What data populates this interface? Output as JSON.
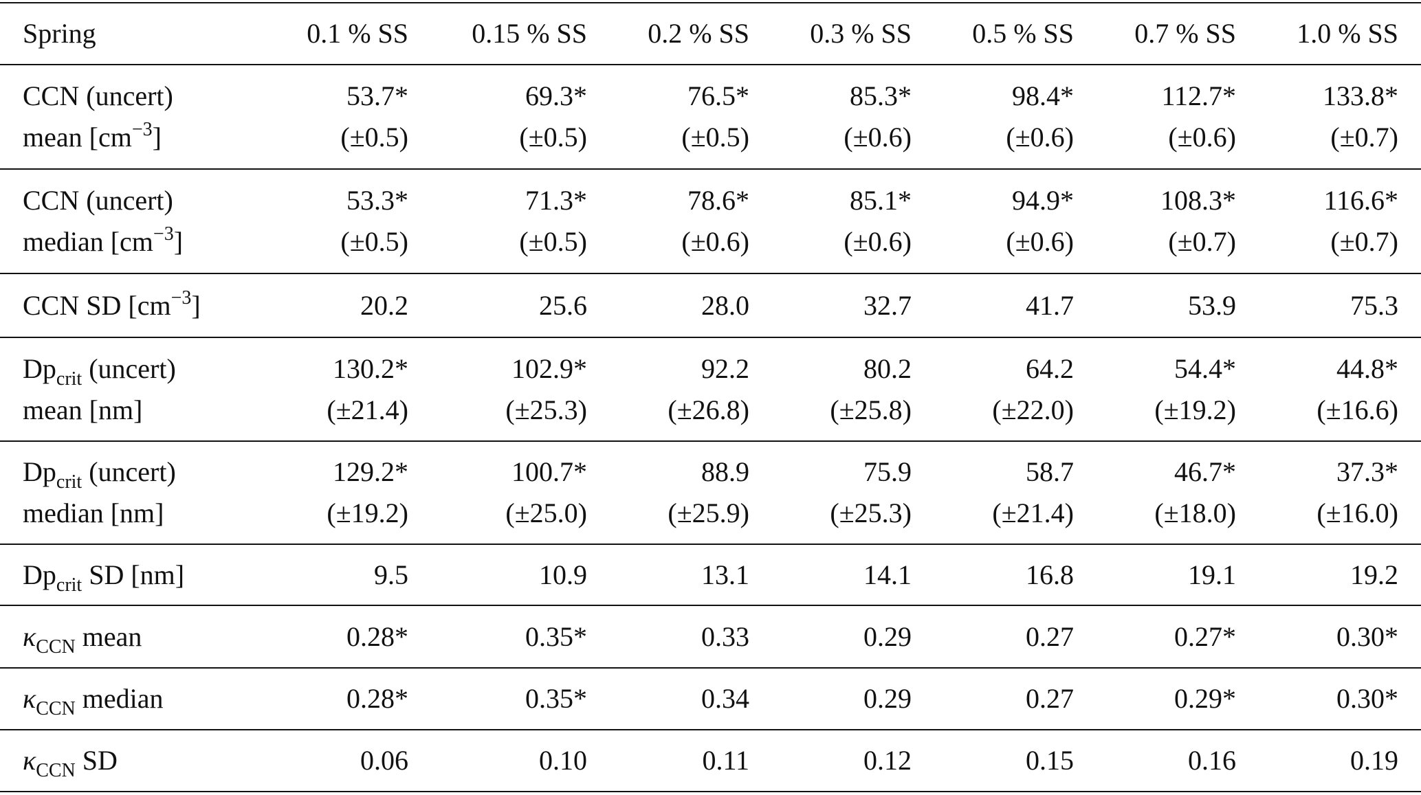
{
  "table": {
    "header": [
      "Spring",
      "0.1 % SS",
      "0.15 % SS",
      "0.2 % SS",
      "0.3 % SS",
      "0.5 % SS",
      "0.7 % SS",
      "1.0 % SS"
    ],
    "rows": [
      {
        "label": [
          [
            {
              "text": "CCN (uncert)"
            }
          ],
          [
            {
              "text": "mean [cm"
            },
            {
              "sup": "−3"
            },
            {
              "text": "]"
            }
          ]
        ],
        "cells": [
          [
            "53.7*",
            "(±0.5)"
          ],
          [
            "69.3*",
            "(±0.5)"
          ],
          [
            "76.5*",
            "(±0.5)"
          ],
          [
            "85.3*",
            "(±0.6)"
          ],
          [
            "98.4*",
            "(±0.6)"
          ],
          [
            "112.7*",
            "(±0.6)"
          ],
          [
            "133.8*",
            "(±0.7)"
          ]
        ]
      },
      {
        "label": [
          [
            {
              "text": "CCN (uncert)"
            }
          ],
          [
            {
              "text": "median [cm"
            },
            {
              "sup": "−3"
            },
            {
              "text": "]"
            }
          ]
        ],
        "cells": [
          [
            "53.3*",
            "(±0.5)"
          ],
          [
            "71.3*",
            "(±0.5)"
          ],
          [
            "78.6*",
            "(±0.6)"
          ],
          [
            "85.1*",
            "(±0.6)"
          ],
          [
            "94.9*",
            "(±0.6)"
          ],
          [
            "108.3*",
            "(±0.7)"
          ],
          [
            "116.6*",
            "(±0.7)"
          ]
        ]
      },
      {
        "label": [
          [
            {
              "text": "CCN SD [cm"
            },
            {
              "sup": "−3"
            },
            {
              "text": "]"
            }
          ]
        ],
        "cells": [
          [
            "20.2"
          ],
          [
            "25.6"
          ],
          [
            "28.0"
          ],
          [
            "32.7"
          ],
          [
            "41.7"
          ],
          [
            "53.9"
          ],
          [
            "75.3"
          ]
        ]
      },
      {
        "label": [
          [
            {
              "text": "Dp"
            },
            {
              "sub": "crit"
            },
            {
              "text": " (uncert)"
            }
          ],
          [
            {
              "text": "mean [nm]"
            }
          ]
        ],
        "cells": [
          [
            "130.2*",
            "(±21.4)"
          ],
          [
            "102.9*",
            "(±25.3)"
          ],
          [
            "92.2",
            "(±26.8)"
          ],
          [
            "80.2",
            "(±25.8)"
          ],
          [
            "64.2",
            "(±22.0)"
          ],
          [
            "54.4*",
            "(±19.2)"
          ],
          [
            "44.8*",
            "(±16.6)"
          ]
        ]
      },
      {
        "label": [
          [
            {
              "text": "Dp"
            },
            {
              "sub": "crit"
            },
            {
              "text": " (uncert)"
            }
          ],
          [
            {
              "text": "median [nm]"
            }
          ]
        ],
        "cells": [
          [
            "129.2*",
            "(±19.2)"
          ],
          [
            "100.7*",
            "(±25.0)"
          ],
          [
            "88.9",
            "(±25.9)"
          ],
          [
            "75.9",
            "(±25.3)"
          ],
          [
            "58.7",
            "(±21.4)"
          ],
          [
            "46.7*",
            "(±18.0)"
          ],
          [
            "37.3*",
            "(±16.0)"
          ]
        ]
      },
      {
        "label": [
          [
            {
              "text": "Dp"
            },
            {
              "sub": "crit"
            },
            {
              "text": " SD [nm]"
            }
          ]
        ],
        "cells": [
          [
            "9.5"
          ],
          [
            "10.9"
          ],
          [
            "13.1"
          ],
          [
            "14.1"
          ],
          [
            "16.8"
          ],
          [
            "19.1"
          ],
          [
            "19.2"
          ]
        ]
      },
      {
        "label": [
          [
            {
              "kappa": "κ"
            },
            {
              "sub": "CCN"
            },
            {
              "text": " mean"
            }
          ]
        ],
        "cells": [
          [
            "0.28*"
          ],
          [
            "0.35*"
          ],
          [
            "0.33"
          ],
          [
            "0.29"
          ],
          [
            "0.27"
          ],
          [
            "0.27*"
          ],
          [
            "0.30*"
          ]
        ]
      },
      {
        "label": [
          [
            {
              "kappa": "κ"
            },
            {
              "sub": "CCN"
            },
            {
              "text": " median"
            }
          ]
        ],
        "cells": [
          [
            "0.28*"
          ],
          [
            "0.35*"
          ],
          [
            "0.34"
          ],
          [
            "0.29"
          ],
          [
            "0.27"
          ],
          [
            "0.29*"
          ],
          [
            "0.30*"
          ]
        ]
      },
      {
        "label": [
          [
            {
              "kappa": "κ"
            },
            {
              "sub": "CCN"
            },
            {
              "text": " SD"
            }
          ]
        ],
        "cells": [
          [
            "0.06"
          ],
          [
            "0.10"
          ],
          [
            "0.11"
          ],
          [
            "0.12"
          ],
          [
            "0.15"
          ],
          [
            "0.16"
          ],
          [
            "0.19"
          ]
        ]
      }
    ]
  }
}
